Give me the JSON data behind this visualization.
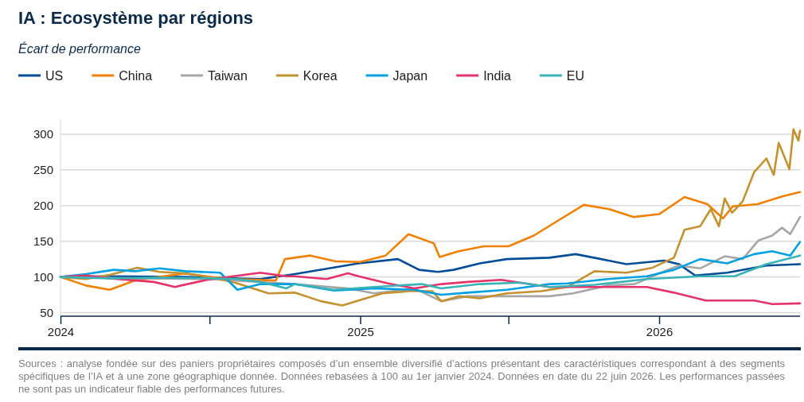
{
  "chart_data": {
    "type": "line",
    "title": "IA : Ecosystème par régions",
    "subtitle": "Écart de performance",
    "xlim": [
      "2024-01-01",
      "2026-06-22"
    ],
    "xticks": [
      {
        "value": "2024-01-01",
        "label": "2024"
      },
      {
        "value": "2024-07-01",
        "label": null
      },
      {
        "value": "2025-01-01",
        "label": "2025"
      },
      {
        "value": "2025-07-01",
        "label": null
      },
      {
        "value": "2026-01-01",
        "label": "2026"
      }
    ],
    "ylim": [
      45,
      320
    ],
    "yticks": [
      50,
      100,
      150,
      200,
      250,
      300
    ],
    "grid": "y",
    "legend": "top left",
    "line_style": "solid",
    "marker": "none",
    "annotations": [
      "Sources : analyse fondée sur des paniers propriétaires composés d’un ensemble diversifié d’actions présentant des caractéristiques correspondant à des segments spécifiques de l’IA et à une zone géographique donnée. Données rebasées à 100 au 1er janvier 2024. Données en date du 22 juin 2026. Les performances passées ne sont pas un indicateur fiable des performances futures."
    ],
    "series": [
      {
        "name": "US",
        "color": "#004c97",
        "x": [
          "2024-01-01",
          "2024-03-01",
          "2024-06-01",
          "2024-09-01",
          "2024-10-13",
          "2024-12-30",
          "2025-02-16",
          "2025-03-14",
          "2025-04-06",
          "2025-04-25",
          "2025-05-27",
          "2025-06-29",
          "2025-08-20",
          "2025-09-21",
          "2025-11-22",
          "2026-01-07",
          "2026-01-25",
          "2026-02-14",
          "2026-03-25",
          "2026-05-12",
          "2026-06-22"
        ],
        "values": [
          100,
          101,
          100,
          97,
          104,
          119,
          125,
          110,
          107,
          110,
          119,
          125,
          127,
          132,
          118,
          123,
          118,
          102,
          106,
          116,
          118
        ]
      },
      {
        "name": "China",
        "color": "#f08000",
        "x": [
          "2024-01-01",
          "2024-02-01",
          "2024-03-01",
          "2024-04-01",
          "2024-05-01",
          "2024-06-01",
          "2024-07-01",
          "2024-08-01",
          "2024-09-20",
          "2024-10-01",
          "2024-11-01",
          "2024-12-01",
          "2025-01-01",
          "2025-02-01",
          "2025-03-01",
          "2025-04-01",
          "2025-04-08",
          "2025-05-01",
          "2025-06-01",
          "2025-07-01",
          "2025-08-01",
          "2025-09-01",
          "2025-10-01",
          "2025-11-01",
          "2025-12-01",
          "2026-01-01",
          "2026-02-01",
          "2026-03-01",
          "2026-03-20",
          "2026-04-01",
          "2026-05-01",
          "2026-06-01",
          "2026-06-22"
        ],
        "values": [
          100,
          88,
          82,
          95,
          100,
          105,
          100,
          97,
          95,
          125,
          130,
          122,
          121,
          130,
          160,
          147,
          128,
          136,
          143,
          143,
          158,
          180,
          201,
          195,
          184,
          188,
          212,
          202,
          182,
          199,
          202,
          213,
          219
        ]
      },
      {
        "name": "Taiwan",
        "color": "#a6a6a6",
        "x": [
          "2024-01-01",
          "2024-04-01",
          "2024-07-01",
          "2024-10-13",
          "2024-12-17",
          "2025-01-18",
          "2025-03-08",
          "2025-04-10",
          "2025-05-12",
          "2025-06-29",
          "2025-08-20",
          "2025-09-18",
          "2025-10-30",
          "2025-12-02",
          "2026-01-03",
          "2026-01-25",
          "2026-02-20",
          "2026-03-22",
          "2026-04-13",
          "2026-05-02",
          "2026-05-19",
          "2026-05-31",
          "2026-06-10",
          "2026-06-22"
        ],
        "values": [
          100,
          98,
          97,
          90,
          84,
          77,
          84,
          66,
          73,
          73,
          73,
          77,
          88,
          90,
          106,
          116,
          112,
          129,
          125,
          151,
          158,
          169,
          160,
          184
        ]
      },
      {
        "name": "Korea",
        "color": "#c4912f",
        "x": [
          "2024-01-01",
          "2024-02-01",
          "2024-03-01",
          "2024-04-04",
          "2024-05-01",
          "2024-06-01",
          "2024-07-01",
          "2024-08-01",
          "2024-09-11",
          "2024-10-13",
          "2024-11-14",
          "2024-12-10",
          "2024-12-30",
          "2025-01-28",
          "2025-03-01",
          "2025-03-30",
          "2025-04-10",
          "2025-05-02",
          "2025-05-27",
          "2025-06-29",
          "2025-08-10",
          "2025-09-11",
          "2025-10-14",
          "2025-11-22",
          "2025-12-24",
          "2026-01-19",
          "2026-02-01",
          "2026-02-20",
          "2026-03-05",
          "2026-03-15",
          "2026-03-22",
          "2026-03-31",
          "2026-04-13",
          "2026-04-27",
          "2026-05-12",
          "2026-05-21",
          "2026-05-27",
          "2026-06-09",
          "2026-06-14",
          "2026-06-20",
          "2026-06-22"
        ],
        "values": [
          100,
          97,
          103,
          113,
          107,
          105,
          100,
          92,
          77,
          78,
          66,
          60,
          67,
          77,
          80,
          80,
          66,
          73,
          70,
          77,
          80,
          86,
          108,
          106,
          113,
          127,
          166,
          171,
          195,
          171,
          210,
          190,
          206,
          247,
          266,
          243,
          288,
          251,
          307,
          291,
          305
        ]
      },
      {
        "name": "Japan",
        "color": "#00a0e1",
        "x": [
          "2024-01-01",
          "2024-02-01",
          "2024-03-06",
          "2024-04-01",
          "2024-05-01",
          "2024-06-01",
          "2024-07-14",
          "2024-08-04",
          "2024-09-01",
          "2024-10-13",
          "2024-11-30",
          "2025-01-18",
          "2025-03-08",
          "2025-04-10",
          "2025-05-12",
          "2025-06-29",
          "2025-08-20",
          "2025-09-11",
          "2025-10-30",
          "2025-12-17",
          "2026-01-19",
          "2026-02-20",
          "2026-03-25",
          "2026-04-27",
          "2026-05-19",
          "2026-06-10",
          "2026-06-22"
        ],
        "values": [
          100,
          104,
          110,
          108,
          112,
          108,
          106,
          82,
          90,
          90,
          81,
          84,
          82,
          75,
          78,
          82,
          90,
          91,
          97,
          101,
          110,
          125,
          119,
          132,
          136,
          130,
          149
        ]
      },
      {
        "name": "India",
        "color": "#e5336a",
        "x": [
          "2024-01-01",
          "2024-02-01",
          "2024-03-01",
          "2024-04-24",
          "2024-05-20",
          "2024-05-27",
          "2024-06-28",
          "2024-07-30",
          "2024-09-01",
          "2024-10-03",
          "2024-10-13",
          "2024-11-21",
          "2024-12-17",
          "2024-12-30",
          "2025-02-04",
          "2025-03-08",
          "2025-04-10",
          "2025-05-12",
          "2025-06-22",
          "2025-08-20",
          "2025-10-14",
          "2025-12-17",
          "2026-01-19",
          "2026-02-27",
          "2026-04-27",
          "2026-05-19",
          "2026-06-22"
        ],
        "values": [
          100,
          102,
          98,
          93,
          86,
          88,
          96,
          101,
          106,
          101,
          101,
          97,
          105,
          101,
          91,
          84,
          90,
          93,
          96,
          86,
          86,
          86,
          78,
          67,
          67,
          62,
          63
        ]
      },
      {
        "name": "EU",
        "color": "#3ab3b8",
        "x": [
          "2024-01-01",
          "2024-03-01",
          "2024-05-01",
          "2024-07-01",
          "2024-08-01",
          "2024-09-01",
          "2024-10-03",
          "2024-10-13",
          "2024-11-30",
          "2025-01-18",
          "2025-03-17",
          "2025-04-10",
          "2025-05-27",
          "2025-07-15",
          "2025-08-20",
          "2025-10-14",
          "2025-12-17",
          "2026-02-20",
          "2026-04-03",
          "2026-05-12",
          "2026-06-22"
        ],
        "values": [
          100,
          98,
          99,
          98,
          97,
          93,
          84,
          90,
          82,
          86,
          90,
          84,
          90,
          92,
          86,
          89,
          97,
          101,
          101,
          118,
          130
        ]
      }
    ]
  }
}
